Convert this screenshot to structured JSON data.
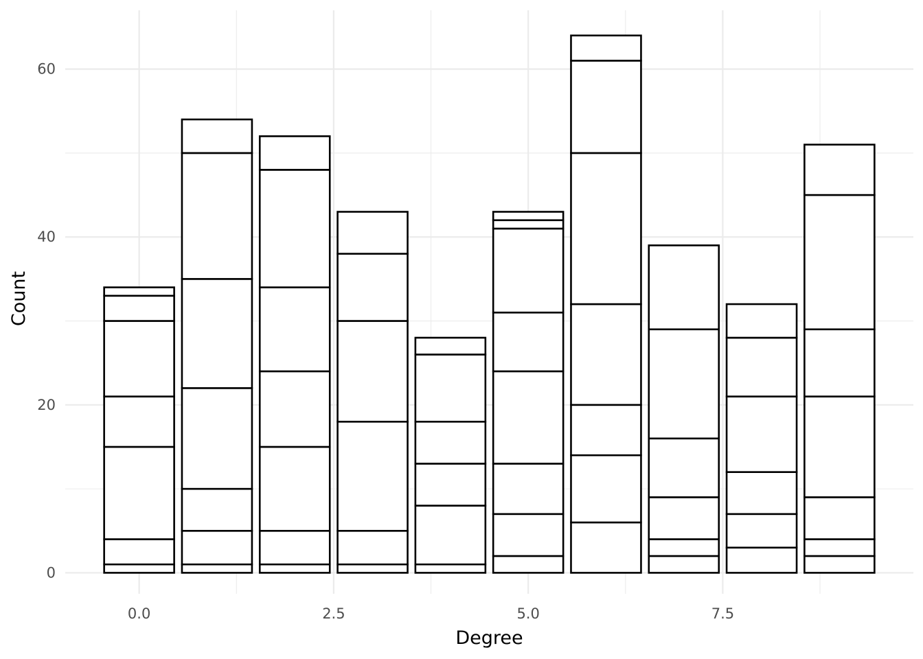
{
  "chart_data": {
    "type": "bar",
    "stacked": true,
    "xlabel": "Degree",
    "ylabel": "Count",
    "xlim": [
      -0.95,
      9.95
    ],
    "ylim": [
      -2.5,
      67
    ],
    "x_ticks": [
      {
        "value": 0,
        "label": "0.0"
      },
      {
        "value": 2.5,
        "label": "2.5"
      },
      {
        "value": 5,
        "label": "5.0"
      },
      {
        "value": 7.5,
        "label": "7.5"
      }
    ],
    "y_ticks": [
      {
        "value": 0,
        "label": "0"
      },
      {
        "value": 20,
        "label": "20"
      },
      {
        "value": 40,
        "label": "40"
      },
      {
        "value": 60,
        "label": "60"
      }
    ],
    "grid": true,
    "fill_color": "#ffffff",
    "outline_color": "#000000",
    "bar_width": 0.9,
    "bars": [
      {
        "x": 0,
        "boundaries": [
          1,
          4,
          15,
          21,
          30,
          33,
          34
        ]
      },
      {
        "x": 1,
        "boundaries": [
          1,
          5,
          10,
          22,
          35,
          50,
          54
        ]
      },
      {
        "x": 2,
        "boundaries": [
          1,
          5,
          15,
          24,
          34,
          48,
          52
        ]
      },
      {
        "x": 3,
        "boundaries": [
          1,
          5,
          18,
          30,
          38,
          43
        ]
      },
      {
        "x": 4,
        "boundaries": [
          1,
          8,
          13,
          18,
          26,
          28
        ]
      },
      {
        "x": 5,
        "boundaries": [
          2,
          7,
          13,
          24,
          31,
          41,
          42,
          43
        ]
      },
      {
        "x": 6,
        "boundaries": [
          6,
          14,
          20,
          32,
          50,
          61,
          64
        ]
      },
      {
        "x": 7,
        "boundaries": [
          2,
          4,
          9,
          16,
          29,
          39
        ]
      },
      {
        "x": 8,
        "boundaries": [
          3,
          7,
          12,
          21,
          28,
          32
        ]
      },
      {
        "x": 9,
        "boundaries": [
          2,
          4,
          9,
          21,
          29,
          45,
          51
        ]
      }
    ]
  }
}
